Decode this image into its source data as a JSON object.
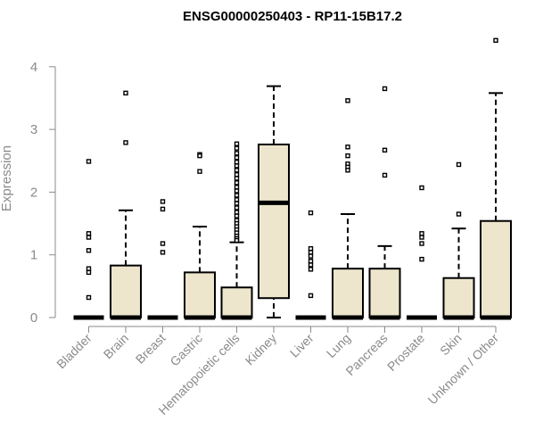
{
  "chart_data": {
    "type": "box",
    "title": "ENSG00000250403 - RP11-15B17.2",
    "ylabel": "Expression",
    "xlabel": "",
    "ylim": [
      0,
      4.5
    ],
    "yticks": [
      0,
      1,
      2,
      3,
      4
    ],
    "box_fill": "#ede6cd",
    "categories": [
      "Bladder",
      "Brain",
      "Breast",
      "Gastric",
      "Hematopoietic cells",
      "Kidney",
      "Liver",
      "Lung",
      "Pancreas",
      "Prostate",
      "Skin",
      "Unknown / Other"
    ],
    "boxes": [
      {
        "name": "Bladder",
        "q1": 0,
        "median": 0,
        "q3": 0,
        "whisker_low": 0,
        "whisker_high": 0,
        "outliers": [
          2.49,
          1.34,
          1.28,
          1.07,
          0.78,
          0.72,
          0.32
        ]
      },
      {
        "name": "Brain",
        "q1": 0,
        "median": 0,
        "q3": 0.83,
        "whisker_low": 0,
        "whisker_high": 1.71,
        "outliers": [
          3.58,
          2.79
        ]
      },
      {
        "name": "Breast",
        "q1": 0,
        "median": 0,
        "q3": 0,
        "whisker_low": 0,
        "whisker_high": 0,
        "outliers": [
          1.85,
          1.73,
          1.18,
          1.04
        ]
      },
      {
        "name": "Gastric",
        "q1": 0,
        "median": 0,
        "q3": 0.72,
        "whisker_low": 0,
        "whisker_high": 1.45,
        "outliers": [
          2.6,
          2.58,
          2.33
        ]
      },
      {
        "name": "Hematopoietic cells",
        "q1": 0,
        "median": 0,
        "q3": 0.48,
        "whisker_low": 0,
        "whisker_high": 1.2,
        "outliers": [
          2.77,
          2.7,
          2.62,
          2.55,
          2.48,
          2.42,
          2.35,
          2.28,
          2.22,
          2.15,
          2.08,
          2.02,
          1.95,
          1.88,
          1.82,
          1.75,
          1.68,
          1.62,
          1.55,
          1.5,
          1.45,
          1.4,
          1.35,
          1.3,
          1.26,
          1.23
        ]
      },
      {
        "name": "Kidney",
        "q1": 0.31,
        "median": 1.83,
        "q3": 2.76,
        "whisker_low": 0,
        "whisker_high": 3.69,
        "outliers": []
      },
      {
        "name": "Liver",
        "q1": 0,
        "median": 0,
        "q3": 0,
        "whisker_low": 0,
        "whisker_high": 0,
        "outliers": [
          1.67,
          1.1,
          1.04,
          0.98,
          0.9,
          0.84,
          0.77,
          0.35
        ]
      },
      {
        "name": "Lung",
        "q1": 0,
        "median": 0,
        "q3": 0.78,
        "whisker_low": 0,
        "whisker_high": 1.65,
        "outliers": [
          3.46,
          2.72,
          2.58,
          2.45,
          2.4,
          2.35
        ]
      },
      {
        "name": "Pancreas",
        "q1": 0,
        "median": 0,
        "q3": 0.78,
        "whisker_low": 0,
        "whisker_high": 1.14,
        "outliers": [
          3.65,
          2.67,
          2.27
        ]
      },
      {
        "name": "Prostate",
        "q1": 0,
        "median": 0,
        "q3": 0,
        "whisker_low": 0,
        "whisker_high": 0,
        "outliers": [
          2.07,
          1.34,
          1.28,
          1.18,
          0.93
        ]
      },
      {
        "name": "Skin",
        "q1": 0,
        "median": 0,
        "q3": 0.63,
        "whisker_low": 0,
        "whisker_high": 1.42,
        "outliers": [
          2.44,
          1.65
        ]
      },
      {
        "name": "Unknown / Other",
        "q1": 0,
        "median": 0,
        "q3": 1.54,
        "whisker_low": 0,
        "whisker_high": 3.58,
        "outliers": [
          4.42
        ]
      }
    ]
  }
}
